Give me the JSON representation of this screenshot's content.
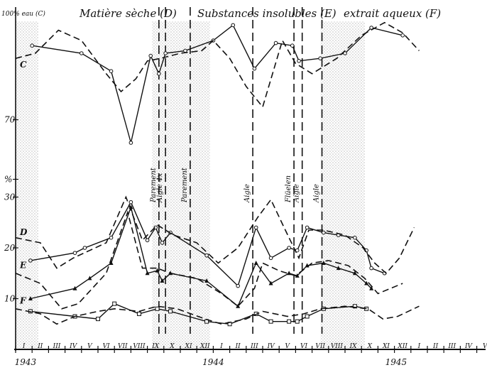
{
  "chart_data": {
    "type": "line",
    "header": {
      "left": "100% eau (C)",
      "col_d": "Matière sèche (D)",
      "col_e": "Substances insolubles (E)",
      "col_f": "extrait aqueux (F)"
    },
    "y_ticks": [
      {
        "label": "%",
        "value": null
      },
      {
        "label": "30",
        "value": 30
      },
      {
        "label": "20",
        "value": 20
      },
      {
        "label": "10",
        "value": 10
      },
      {
        "label": "70",
        "value": 70
      }
    ],
    "series_labels": [
      "C",
      "D",
      "E",
      "F"
    ],
    "x_month_labels": [
      "I",
      "II",
      "III",
      "IV",
      "V",
      "VI",
      "VII",
      "VIII",
      "IX",
      "X",
      "XI",
      "XII",
      "I",
      "II",
      "III",
      "IV",
      "V",
      "VI",
      "VII",
      "VIII",
      "IX",
      "X",
      "XI",
      "XII",
      "I",
      "II",
      "III",
      "IV",
      "V",
      "VI"
    ],
    "year_labels": [
      "1943",
      "1944",
      "1945"
    ],
    "events": [
      "Parement",
      "Aigle 4x",
      "Parement",
      "Aigle",
      "Flüelen",
      "Aigle",
      "Aigle"
    ],
    "ylim_pct": [
      0,
      30
    ],
    "series": [
      {
        "name": "C",
        "style": "solid",
        "points": [
          [
            1.0,
            78
          ],
          [
            4.0,
            75
          ],
          [
            5.8,
            68
          ],
          [
            7.0,
            40
          ],
          [
            8.2,
            74
          ],
          [
            8.7,
            67
          ],
          [
            9.1,
            75
          ],
          [
            10.3,
            76
          ],
          [
            12.0,
            80
          ],
          [
            13.2,
            86
          ],
          [
            14.5,
            69
          ],
          [
            15.8,
            79
          ],
          [
            16.8,
            78
          ],
          [
            17.2,
            72
          ],
          [
            18.5,
            73
          ],
          [
            20.0,
            75
          ],
          [
            21.6,
            85
          ],
          [
            23.5,
            82
          ]
        ]
      },
      {
        "name": "C-trend",
        "style": "dashed",
        "points": [
          [
            0,
            73
          ],
          [
            1.2,
            75
          ],
          [
            2.6,
            84
          ],
          [
            4.0,
            80
          ],
          [
            5.5,
            67
          ],
          [
            6.4,
            60
          ],
          [
            7.3,
            65
          ],
          [
            8.0,
            72
          ],
          [
            8.8,
            73
          ],
          [
            10.0,
            75
          ],
          [
            11.3,
            76
          ],
          [
            12.0,
            80
          ],
          [
            13.0,
            73
          ],
          [
            14.0,
            62
          ],
          [
            15.0,
            54
          ],
          [
            16.2,
            80
          ],
          [
            17.0,
            71
          ],
          [
            18.0,
            67
          ],
          [
            19.5,
            73
          ],
          [
            21.0,
            82
          ],
          [
            22.4,
            87
          ],
          [
            23.5,
            83
          ],
          [
            24.5,
            76
          ]
        ]
      },
      {
        "name": "D",
        "style": "solid",
        "points": [
          [
            0.9,
            17.5
          ],
          [
            3.6,
            19
          ],
          [
            4.2,
            20
          ],
          [
            5.8,
            22
          ],
          [
            7.0,
            29
          ],
          [
            8.0,
            21.5
          ],
          [
            8.5,
            24
          ],
          [
            8.9,
            21
          ],
          [
            9.4,
            23
          ],
          [
            11.6,
            18.5
          ],
          [
            13.5,
            12.5
          ],
          [
            14.6,
            24
          ],
          [
            15.5,
            18
          ],
          [
            16.6,
            20
          ],
          [
            17.1,
            19.5
          ],
          [
            17.7,
            24
          ],
          [
            18.7,
            23
          ],
          [
            19.6,
            22.5
          ],
          [
            20.6,
            22
          ],
          [
            21.3,
            19.5
          ],
          [
            21.6,
            16
          ],
          [
            22.4,
            15
          ]
        ]
      },
      {
        "name": "D-trend",
        "style": "dashed",
        "points": [
          [
            0,
            22
          ],
          [
            1.5,
            21
          ],
          [
            2.5,
            16
          ],
          [
            3.5,
            18
          ],
          [
            5.5,
            21
          ],
          [
            6.7,
            30
          ],
          [
            7.7,
            21.5
          ],
          [
            8.6,
            24.5
          ],
          [
            9.6,
            22.5
          ],
          [
            11.0,
            21
          ],
          [
            12.3,
            17
          ],
          [
            13.5,
            20
          ],
          [
            14.7,
            26
          ],
          [
            15.5,
            29.5
          ],
          [
            16.3,
            24
          ],
          [
            17.2,
            18
          ],
          [
            17.8,
            23.5
          ],
          [
            18.7,
            23.5
          ],
          [
            20.0,
            22.5
          ],
          [
            21.1,
            20
          ],
          [
            21.8,
            17
          ],
          [
            22.5,
            15
          ],
          [
            23.3,
            18
          ],
          [
            24.2,
            24
          ]
        ]
      },
      {
        "name": "E",
        "style": "solid",
        "points": [
          [
            0.9,
            10
          ],
          [
            3.6,
            12
          ],
          [
            4.5,
            14
          ],
          [
            5.8,
            17
          ],
          [
            7.0,
            28
          ],
          [
            8.0,
            15
          ],
          [
            8.6,
            15.5
          ],
          [
            8.9,
            13.5
          ],
          [
            9.4,
            15
          ],
          [
            11.6,
            13.5
          ],
          [
            13.5,
            8.5
          ],
          [
            14.6,
            17
          ],
          [
            15.5,
            13
          ],
          [
            16.6,
            15
          ],
          [
            17.1,
            14.5
          ],
          [
            17.7,
            16.5
          ],
          [
            18.7,
            17
          ],
          [
            19.6,
            16
          ],
          [
            20.6,
            15
          ],
          [
            21.3,
            13
          ],
          [
            21.6,
            12
          ]
        ]
      },
      {
        "name": "E-trend",
        "style": "dashed",
        "points": [
          [
            0,
            15
          ],
          [
            1.5,
            13
          ],
          [
            2.8,
            8
          ],
          [
            3.8,
            9
          ],
          [
            5.5,
            15
          ],
          [
            6.8,
            27
          ],
          [
            7.7,
            16
          ],
          [
            8.6,
            16
          ],
          [
            9.4,
            15
          ],
          [
            11.0,
            14
          ],
          [
            12.5,
            11
          ],
          [
            13.5,
            8.5
          ],
          [
            14.5,
            12
          ],
          [
            15.0,
            17
          ],
          [
            16.0,
            15.5
          ],
          [
            17.0,
            14.5
          ],
          [
            18.0,
            17
          ],
          [
            19.0,
            17.5
          ],
          [
            20.2,
            16.5
          ],
          [
            21.2,
            14
          ],
          [
            22.0,
            11
          ],
          [
            23.5,
            13
          ]
        ]
      },
      {
        "name": "F",
        "style": "solid",
        "points": [
          [
            0.9,
            7.5
          ],
          [
            3.6,
            6.5
          ],
          [
            5.0,
            6
          ],
          [
            6.0,
            9
          ],
          [
            7.5,
            7
          ],
          [
            8.6,
            8
          ],
          [
            9.4,
            7.5
          ],
          [
            11.6,
            5.5
          ],
          [
            13.0,
            5
          ],
          [
            14.6,
            7
          ],
          [
            15.5,
            5.5
          ],
          [
            16.6,
            5.5
          ],
          [
            17.1,
            5.5
          ],
          [
            17.7,
            6.5
          ],
          [
            18.7,
            8
          ],
          [
            20.6,
            8.5
          ],
          [
            21.3,
            8
          ]
        ]
      },
      {
        "name": "F-trend",
        "style": "dashed",
        "points": [
          [
            0,
            8
          ],
          [
            1.5,
            7
          ],
          [
            2.5,
            5
          ],
          [
            3.6,
            6.5
          ],
          [
            5.0,
            7.5
          ],
          [
            6.0,
            8
          ],
          [
            7.5,
            7.5
          ],
          [
            8.6,
            8.5
          ],
          [
            9.8,
            8
          ],
          [
            11.5,
            6
          ],
          [
            12.5,
            5
          ],
          [
            14.0,
            6
          ],
          [
            15.0,
            7.5
          ],
          [
            16.5,
            6.5
          ],
          [
            17.5,
            7
          ],
          [
            18.5,
            8
          ],
          [
            20.0,
            8.5
          ],
          [
            21.4,
            8
          ],
          [
            22.3,
            6
          ],
          [
            23.2,
            6.5
          ],
          [
            24.5,
            8.5
          ]
        ]
      }
    ],
    "shaded_periods": [
      [
        0,
        1.4
      ],
      [
        8.3,
        11.8
      ],
      [
        18.5,
        21.2
      ]
    ],
    "event_positions": [
      8.7,
      9.1,
      10.6,
      14.4,
      16.9,
      17.4,
      18.6
    ]
  }
}
